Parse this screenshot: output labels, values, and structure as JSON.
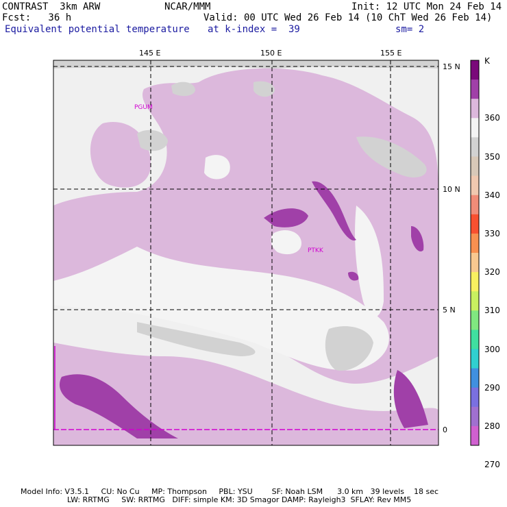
{
  "header": {
    "model": "CONTRAST  3km ARW",
    "org": "NCAR/MMM",
    "init": "Init: 12 UTC Mon 24 Feb 14",
    "fcst": "Fcst:   36 h",
    "valid": "Valid: 00 UTC Wed 26 Feb 14 (10 ChT Wed 26 Feb 14)",
    "field": "Equivalent potential temperature",
    "level": "at k-index =  39",
    "smooth": "sm= 2"
  },
  "axes": {
    "lon_labels": [
      "145 E",
      "150 E",
      "155 E"
    ],
    "lat_labels": [
      "15 N",
      "10 N",
      "5 N",
      "0"
    ]
  },
  "stations": [
    "PGUM",
    "PTKK"
  ],
  "colorbar": {
    "unit": "K",
    "labels": [
      "360",
      "350",
      "340",
      "330",
      "320",
      "310",
      "300",
      "290",
      "280",
      "270"
    ],
    "colors": [
      "#7a0a7a",
      "#a040a8",
      "#dcb8dc",
      "#f4f4f4",
      "#d2d2d2",
      "#d8c8b8",
      "#f0c8b0",
      "#f08c78",
      "#f85030",
      "#f89050",
      "#f8c890",
      "#f8f060",
      "#c8f060",
      "#80e880",
      "#40e0a0",
      "#30d0d0",
      "#4090e0",
      "#7a70e0",
      "#a070d0",
      "#d060d0"
    ]
  },
  "model_info": {
    "line1": "Model Info: V3.5.1     CU: No Cu     MP: Thompson     PBL: YSU        SF: Noah LSM      3.0 km   39 levels    18 sec",
    "line2": "LW: RRTMG     SW: RRTMG   DIFF: simple KM: 3D Smagor DAMP: Rayleigh3  SFLAY: Rev MM5"
  }
}
